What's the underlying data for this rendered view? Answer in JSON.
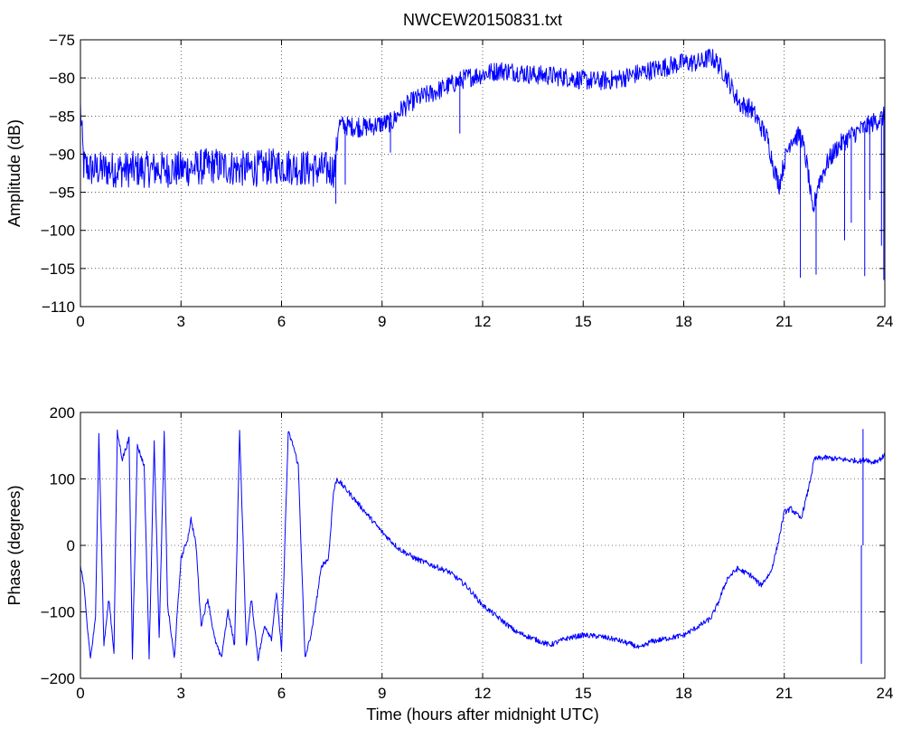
{
  "title": "NWCEW20150831.txt",
  "line_color": "#0000ff",
  "chart_data": [
    {
      "type": "line",
      "title": "NWCEW20150831.txt",
      "xlabel": "",
      "ylabel": "Amplitude (dB)",
      "xlim": [
        0,
        24
      ],
      "ylim": [
        -110,
        -75
      ],
      "xticks": [
        0,
        3,
        6,
        9,
        12,
        15,
        18,
        21,
        24
      ],
      "yticks": [
        -75,
        -80,
        -85,
        -90,
        -95,
        -100,
        -105,
        -110
      ],
      "xtick_labels": [
        "0",
        "3",
        "6",
        "9",
        "12",
        "15",
        "18",
        "21",
        "24"
      ],
      "ytick_labels": [
        "−75",
        "−80",
        "−85",
        "−90",
        "−95",
        "−100",
        "−105",
        "−110"
      ],
      "grid": true,
      "series": [
        {
          "noise": 1.3,
          "x": [
            0.0,
            0.05,
            0.1,
            0.3,
            1.0,
            2.0,
            3.0,
            4.0,
            5.0,
            6.0,
            7.0,
            7.4,
            7.6,
            7.7,
            7.8,
            8.3,
            8.6,
            9.0,
            9.3,
            9.6,
            10.0,
            10.5,
            11.0,
            11.5,
            12.0,
            12.5,
            13.0,
            13.5,
            14.0,
            14.5,
            15.0,
            15.5,
            16.0,
            16.5,
            17.0,
            17.5,
            18.0,
            18.5,
            18.8,
            19.0,
            19.3,
            19.5,
            19.7,
            20.0,
            20.2,
            20.5,
            20.7,
            20.85,
            21.0,
            21.2,
            21.5,
            21.7,
            21.85,
            22.0,
            22.3,
            22.6,
            23.0,
            23.4,
            23.8,
            24.0
          ],
          "y": [
            -84,
            -88,
            -91.5,
            -92,
            -92,
            -92,
            -92,
            -91.5,
            -92,
            -91.5,
            -92,
            -92,
            -92,
            -86,
            -86.2,
            -86.5,
            -86.4,
            -86,
            -85.8,
            -84,
            -82.8,
            -82,
            -81,
            -80,
            -79.5,
            -79,
            -79.2,
            -79.6,
            -79.7,
            -79.9,
            -80.3,
            -80.4,
            -80.2,
            -79.6,
            -79,
            -78.5,
            -78,
            -78,
            -77.2,
            -78,
            -80,
            -82,
            -83.5,
            -84,
            -85.5,
            -88,
            -92,
            -94,
            -91,
            -88,
            -87.5,
            -92,
            -98,
            -94,
            -91,
            -89,
            -87.5,
            -86.5,
            -85.5,
            -85
          ]
        }
      ],
      "spikes": [
        [
          7.62,
          -96.5
        ],
        [
          7.9,
          -94
        ],
        [
          8.3,
          -85.2
        ],
        [
          9.25,
          -89.8
        ],
        [
          11.32,
          -87.3
        ],
        [
          21.48,
          -106.2
        ],
        [
          21.95,
          -105.8
        ],
        [
          22.8,
          -101.3
        ],
        [
          23.0,
          -99
        ],
        [
          23.4,
          -106
        ],
        [
          23.55,
          -96
        ],
        [
          23.9,
          -102
        ],
        [
          23.97,
          -106.5
        ]
      ]
    },
    {
      "type": "line",
      "title": "",
      "xlabel": "Time (hours after midnight UTC)",
      "ylabel": "Phase (degrees)",
      "xlim": [
        0,
        24
      ],
      "ylim": [
        -200,
        200
      ],
      "xticks": [
        0,
        3,
        6,
        9,
        12,
        15,
        18,
        21,
        24
      ],
      "yticks": [
        200,
        100,
        0,
        -100,
        -200
      ],
      "xtick_labels": [
        "0",
        "3",
        "6",
        "9",
        "12",
        "15",
        "18",
        "21",
        "24"
      ],
      "ytick_labels": [
        "200",
        "100",
        "0",
        "−100",
        "−200"
      ],
      "grid": true,
      "series": [
        {
          "noise": 4,
          "x": [
            0.0,
            0.1,
            0.2,
            0.3,
            0.45,
            0.55,
            0.7,
            0.85,
            1.0,
            1.1,
            1.25,
            1.45,
            1.55,
            1.7,
            1.9,
            2.05,
            2.2,
            2.35,
            2.5,
            2.6,
            2.8,
            3.0,
            3.2,
            3.3,
            3.45,
            3.6,
            3.8,
            4.0,
            4.2,
            4.4,
            4.6,
            4.75,
            4.95,
            5.1,
            5.3,
            5.5,
            5.7,
            5.85,
            6.0,
            6.2,
            6.35,
            6.5,
            6.7,
            6.9,
            7.05,
            7.2,
            7.4,
            7.55,
            7.65,
            8.0,
            8.5,
            9.0,
            9.5,
            10.0,
            10.5,
            11.0,
            11.5,
            12.0,
            12.5,
            13.0,
            13.5,
            14.0,
            14.5,
            15.0,
            15.5,
            16.0,
            16.5,
            16.7,
            17.0,
            17.5,
            18.0,
            18.5,
            18.8,
            19.0,
            19.3,
            19.6,
            20.0,
            20.3,
            20.6,
            20.8,
            21.0,
            21.2,
            21.5,
            21.7,
            21.9,
            22.2,
            22.6,
            23.0,
            23.3,
            23.45,
            23.6,
            23.8,
            24.0
          ],
          "y": [
            -30,
            -60,
            -120,
            -170,
            -110,
            170,
            -150,
            -80,
            -160,
            170,
            130,
            160,
            -170,
            150,
            120,
            -170,
            160,
            -140,
            170,
            -90,
            -170,
            -20,
            10,
            40,
            0,
            -120,
            -80,
            -140,
            -170,
            -100,
            -150,
            170,
            -150,
            -80,
            -170,
            -120,
            -140,
            -70,
            -160,
            170,
            150,
            120,
            -170,
            -130,
            -80,
            -30,
            -20,
            80,
            100,
            80,
            50,
            20,
            -5,
            -20,
            -30,
            -40,
            -60,
            -90,
            -110,
            -130,
            -140,
            -150,
            -140,
            -135,
            -137,
            -142,
            -150,
            -155,
            -145,
            -140,
            -135,
            -120,
            -110,
            -90,
            -50,
            -35,
            -45,
            -60,
            -40,
            0,
            50,
            55,
            40,
            80,
            130,
            132,
            130,
            128,
            127,
            130,
            125,
            128,
            135
          ],
          "spikes": [
            [
              23.3,
              -178
            ],
            [
              23.35,
              175
            ]
          ]
        }
      ]
    }
  ]
}
